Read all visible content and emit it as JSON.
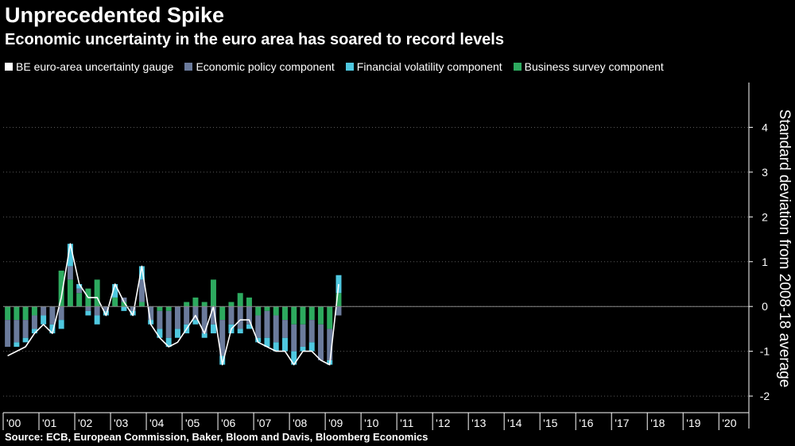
{
  "chart_data": {
    "type": "bar",
    "title": "Unprecedented Spike",
    "subtitle": "Economic uncertainty in the euro area has soared to record levels",
    "ylabel": "Standard deviation from 2008-18 average",
    "source": "Source: ECB, European Commission, Baker, Bloom and Davis, Bloomberg Economics",
    "ylim": [
      -2.3,
      5.0
    ],
    "yticks": [
      -2,
      -1,
      0,
      1,
      2,
      3,
      4
    ],
    "ytick_labels": [
      "-2",
      "-1",
      "0",
      "1",
      "2",
      "3",
      "4"
    ],
    "xlim": [
      2000.0,
      2020.75
    ],
    "x_ticks": [
      {
        "x": 2000.0,
        "label": "'00"
      },
      {
        "x": 2001.0,
        "label": "'01"
      },
      {
        "x": 2002.0,
        "label": "'02"
      },
      {
        "x": 2003.0,
        "label": "'03"
      },
      {
        "x": 2004.0,
        "label": "'04"
      },
      {
        "x": 2005.0,
        "label": "'05"
      },
      {
        "x": 2006.0,
        "label": "'06"
      },
      {
        "x": 2007.0,
        "label": "'07"
      },
      {
        "x": 2008.0,
        "label": "'08"
      },
      {
        "x": 2009.0,
        "label": "'09"
      },
      {
        "x": 2010.0,
        "label": "'10"
      },
      {
        "x": 2011.0,
        "label": "'11"
      },
      {
        "x": 2012.0,
        "label": "'12"
      },
      {
        "x": 2013.0,
        "label": "'13"
      },
      {
        "x": 2014.0,
        "label": "'14"
      },
      {
        "x": 2015.0,
        "label": "'15"
      },
      {
        "x": 2016.0,
        "label": "'16"
      },
      {
        "x": 2017.0,
        "label": "'17"
      },
      {
        "x": 2018.0,
        "label": "'18"
      },
      {
        "x": 2019.0,
        "label": "'19"
      },
      {
        "x": 2020.0,
        "label": "'20"
      }
    ],
    "legend_placement": "top-left",
    "series": [
      {
        "name": "BE euro-area uncertainty gauge",
        "color": "#ffffff",
        "kind": "line"
      },
      {
        "name": "Economic policy component",
        "color": "#6b7b9c",
        "kind": "bar"
      },
      {
        "name": "Financial volatility component",
        "color": "#4fc8e0",
        "kind": "bar"
      },
      {
        "name": "Business survey component",
        "color": "#2daa5f",
        "kind": "bar"
      }
    ],
    "quarters": [
      {
        "x": 2000.0,
        "policy": -0.6,
        "vol": 0.0,
        "survey": -0.3,
        "gauge": -1.1
      },
      {
        "x": 2000.25,
        "policy": -0.5,
        "vol": -0.1,
        "survey": -0.3,
        "gauge": -1.0
      },
      {
        "x": 2000.5,
        "policy": -0.4,
        "vol": -0.1,
        "survey": -0.3,
        "gauge": -0.9
      },
      {
        "x": 2000.75,
        "policy": -0.3,
        "vol": -0.1,
        "survey": -0.2,
        "gauge": -0.6
      },
      {
        "x": 2001.0,
        "policy": -0.2,
        "vol": -0.2,
        "survey": 0.0,
        "gauge": -0.4
      },
      {
        "x": 2001.25,
        "policy": -0.4,
        "vol": -0.2,
        "survey": 0.0,
        "gauge": -0.6
      },
      {
        "x": 2001.5,
        "policy": -0.3,
        "vol": -0.2,
        "survey": 0.8,
        "gauge": 0.2
      },
      {
        "x": 2001.75,
        "policy": 0.3,
        "vol": 0.5,
        "survey": 0.6,
        "gauge": 1.4
      },
      {
        "x": 2002.0,
        "policy": 0.1,
        "vol": 0.1,
        "survey": 0.3,
        "gauge": 0.5
      },
      {
        "x": 2002.25,
        "policy": -0.1,
        "vol": -0.1,
        "survey": 0.4,
        "gauge": 0.2
      },
      {
        "x": 2002.5,
        "policy": -0.2,
        "vol": -0.2,
        "survey": 0.6,
        "gauge": 0.2
      },
      {
        "x": 2002.75,
        "policy": -0.1,
        "vol": -0.1,
        "survey": 0.0,
        "gauge": -0.2
      },
      {
        "x": 2003.0,
        "policy": 0.0,
        "vol": 0.3,
        "survey": 0.2,
        "gauge": 0.5
      },
      {
        "x": 2003.25,
        "policy": 0.1,
        "vol": -0.1,
        "survey": 0.1,
        "gauge": 0.1
      },
      {
        "x": 2003.5,
        "policy": -0.1,
        "vol": -0.1,
        "survey": 0.0,
        "gauge": -0.2
      },
      {
        "x": 2003.75,
        "policy": 0.5,
        "vol": 0.3,
        "survey": 0.1,
        "gauge": 0.9
      },
      {
        "x": 2004.0,
        "policy": -0.3,
        "vol": -0.1,
        "survey": 0.0,
        "gauge": -0.4
      },
      {
        "x": 2004.25,
        "policy": -0.4,
        "vol": -0.2,
        "survey": -0.1,
        "gauge": -0.7
      },
      {
        "x": 2004.5,
        "policy": -0.6,
        "vol": -0.2,
        "survey": -0.1,
        "gauge": -0.9
      },
      {
        "x": 2004.75,
        "policy": -0.5,
        "vol": -0.2,
        "survey": 0.0,
        "gauge": -0.8
      },
      {
        "x": 2005.0,
        "policy": -0.4,
        "vol": -0.2,
        "survey": 0.1,
        "gauge": -0.5
      },
      {
        "x": 2005.25,
        "policy": -0.3,
        "vol": -0.1,
        "survey": 0.2,
        "gauge": -0.2
      },
      {
        "x": 2005.5,
        "policy": -0.6,
        "vol": -0.1,
        "survey": 0.1,
        "gauge": -0.6
      },
      {
        "x": 2005.75,
        "policy": -0.4,
        "vol": -0.2,
        "survey": 0.6,
        "gauge": 0.0
      },
      {
        "x": 2006.0,
        "policy": -0.8,
        "vol": -0.2,
        "survey": -0.3,
        "gauge": -1.3
      },
      {
        "x": 2006.25,
        "policy": -0.4,
        "vol": -0.2,
        "survey": 0.1,
        "gauge": -0.5
      },
      {
        "x": 2006.5,
        "policy": -0.5,
        "vol": -0.1,
        "survey": 0.3,
        "gauge": -0.3
      },
      {
        "x": 2006.75,
        "policy": -0.4,
        "vol": -0.1,
        "survey": 0.2,
        "gauge": -0.3
      },
      {
        "x": 2007.0,
        "policy": -0.5,
        "vol": -0.1,
        "survey": -0.2,
        "gauge": -0.8
      },
      {
        "x": 2007.25,
        "policy": -0.6,
        "vol": -0.2,
        "survey": -0.1,
        "gauge": -0.9
      },
      {
        "x": 2007.5,
        "policy": -0.6,
        "vol": -0.2,
        "survey": -0.2,
        "gauge": -1.0
      },
      {
        "x": 2007.75,
        "policy": -0.4,
        "vol": -0.3,
        "survey": -0.3,
        "gauge": -1.0
      },
      {
        "x": 2008.0,
        "policy": -0.6,
        "vol": -0.3,
        "survey": -0.4,
        "gauge": -1.3
      },
      {
        "x": 2008.25,
        "policy": -0.5,
        "vol": -0.1,
        "survey": -0.4,
        "gauge": -1.0
      },
      {
        "x": 2008.5,
        "policy": -0.5,
        "vol": -0.2,
        "survey": -0.3,
        "gauge": -1.0
      },
      {
        "x": 2008.75,
        "policy": -0.8,
        "vol": 0.0,
        "survey": -0.4,
        "gauge": -1.2
      },
      {
        "x": 2009.0,
        "policy": -0.7,
        "vol": -0.1,
        "survey": -0.5,
        "gauge": -1.3
      },
      {
        "x": 2009.25,
        "policy": -0.2,
        "vol": 0.4,
        "survey": 0.3,
        "gauge": 0.5
      }
    ]
  }
}
